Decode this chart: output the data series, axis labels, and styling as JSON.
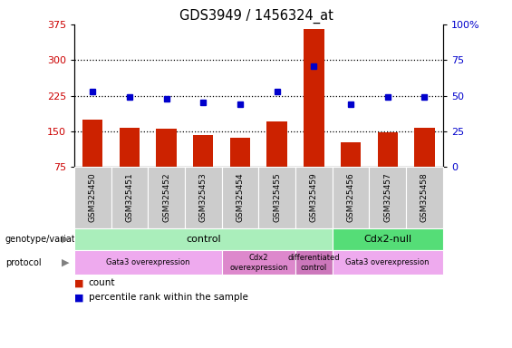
{
  "title": "GDS3949 / 1456324_at",
  "samples": [
    "GSM325450",
    "GSM325451",
    "GSM325452",
    "GSM325453",
    "GSM325454",
    "GSM325455",
    "GSM325459",
    "GSM325456",
    "GSM325457",
    "GSM325458"
  ],
  "counts": [
    175,
    158,
    155,
    143,
    137,
    170,
    365,
    128,
    148,
    158
  ],
  "percentile_ranks": [
    53,
    49,
    48,
    45,
    44,
    53,
    71,
    44,
    49,
    49
  ],
  "ylim_left": [
    75,
    375
  ],
  "ylim_right": [
    0,
    100
  ],
  "yticks_left": [
    75,
    150,
    225,
    300,
    375
  ],
  "yticks_right": [
    0,
    25,
    50,
    75,
    100
  ],
  "ytick_right_labels": [
    "0",
    "25",
    "50",
    "75",
    "100%"
  ],
  "bar_color": "#cc2200",
  "dot_color": "#0000cc",
  "genotype_groups": [
    {
      "label": "control",
      "start": 0,
      "end": 7,
      "color": "#aaeebb"
    },
    {
      "label": "Cdx2-null",
      "start": 7,
      "end": 10,
      "color": "#55dd77"
    }
  ],
  "protocol_groups": [
    {
      "label": "Gata3 overexpression",
      "start": 0,
      "end": 4,
      "color": "#eeaaee"
    },
    {
      "label": "Cdx2\noverexpression",
      "start": 4,
      "end": 6,
      "color": "#dd88cc"
    },
    {
      "label": "differentiated\ncontrol",
      "start": 6,
      "end": 7,
      "color": "#cc77bb"
    },
    {
      "label": "Gata3 overexpression",
      "start": 7,
      "end": 10,
      "color": "#eeaaee"
    }
  ],
  "tick_label_color_left": "#cc0000",
  "tick_label_color_right": "#0000cc",
  "sample_bg_color": "#cccccc",
  "legend_items": [
    {
      "color": "#cc2200",
      "label": "count"
    },
    {
      "color": "#0000cc",
      "label": "percentile rank within the sample"
    }
  ]
}
